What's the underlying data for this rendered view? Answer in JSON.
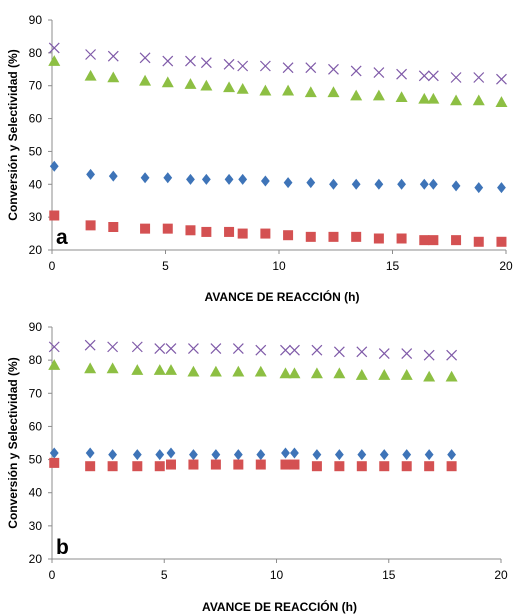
{
  "chart_data": [
    {
      "type": "scatter",
      "panel_label": "a",
      "xlabel": "AVANCE DE REACCIÓN (h)",
      "ylabel": "Conversión y Selectividad (%)",
      "xlim": [
        0,
        20
      ],
      "ylim": [
        20,
        90
      ],
      "xticks": [
        0,
        5,
        10,
        15,
        20
      ],
      "yticks": [
        20,
        30,
        40,
        50,
        60,
        70,
        80,
        90
      ],
      "grid": false,
      "series": [
        {
          "marker": "cross",
          "color": "#7f5aa8",
          "x": [
            0.1,
            1.7,
            2.7,
            4.1,
            5.1,
            6.1,
            6.8,
            7.8,
            8.4,
            9.4,
            10.4,
            11.4,
            12.4,
            13.4,
            14.4,
            15.4,
            16.4,
            16.8,
            17.8,
            18.8,
            19.8
          ],
          "y": [
            81.5,
            79.5,
            79,
            78.5,
            77.5,
            77.5,
            77,
            76.5,
            76,
            76,
            75.5,
            75.5,
            75,
            74.5,
            74,
            73.5,
            73,
            73,
            72.5,
            72.5,
            72
          ]
        },
        {
          "marker": "triangle",
          "color": "#8dbf43",
          "x": [
            0.1,
            1.7,
            2.7,
            4.1,
            5.1,
            6.1,
            6.8,
            7.8,
            8.4,
            9.4,
            10.4,
            11.4,
            12.4,
            13.4,
            14.4,
            15.4,
            16.4,
            16.8,
            17.8,
            18.8,
            19.8
          ],
          "y": [
            77.5,
            73,
            72.5,
            71.5,
            71,
            70.5,
            70,
            69.5,
            69,
            68.5,
            68.5,
            68,
            68,
            67,
            67,
            66.5,
            66,
            66,
            65.5,
            65.5,
            65
          ]
        },
        {
          "marker": "diamond",
          "color": "#3e74b8",
          "x": [
            0.1,
            1.7,
            2.7,
            4.1,
            5.1,
            6.1,
            6.8,
            7.8,
            8.4,
            9.4,
            10.4,
            11.4,
            12.4,
            13.4,
            14.4,
            15.4,
            16.4,
            16.8,
            17.8,
            18.8,
            19.8
          ],
          "y": [
            45.5,
            43,
            42.5,
            42,
            42,
            41.5,
            41.5,
            41.5,
            41.5,
            41,
            40.5,
            40.5,
            40,
            40,
            40,
            40,
            40,
            40,
            39.5,
            39,
            39
          ]
        },
        {
          "marker": "square",
          "color": "#d45152",
          "x": [
            0.1,
            1.7,
            2.7,
            4.1,
            5.1,
            6.1,
            6.8,
            7.8,
            8.4,
            9.4,
            10.4,
            11.4,
            12.4,
            13.4,
            14.4,
            15.4,
            16.4,
            16.8,
            17.8,
            18.8,
            19.8
          ],
          "y": [
            30.5,
            27.5,
            27,
            26.5,
            26.5,
            26,
            25.5,
            25.5,
            25,
            25,
            24.5,
            24,
            24,
            24,
            23.5,
            23.5,
            23,
            23,
            23,
            22.5,
            22.5
          ]
        }
      ]
    },
    {
      "type": "scatter",
      "panel_label": "b",
      "xlabel": "AVANCE DE REACCIÓN (h)",
      "ylabel": "Conversión y Selectividad (%)",
      "xlim": [
        0,
        20
      ],
      "ylim": [
        20,
        90
      ],
      "xticks": [
        0,
        5,
        10,
        15,
        20
      ],
      "yticks": [
        20,
        30,
        40,
        50,
        60,
        70,
        80,
        90
      ],
      "grid": false,
      "series": [
        {
          "marker": "cross",
          "color": "#7f5aa8",
          "x": [
            0.1,
            1.7,
            2.7,
            3.8,
            4.8,
            5.3,
            6.3,
            7.3,
            8.3,
            9.3,
            10.4,
            10.8,
            11.8,
            12.8,
            13.8,
            14.8,
            15.8,
            16.8,
            17.8
          ],
          "y": [
            84,
            84.5,
            84,
            84,
            83.5,
            83.5,
            83.5,
            83.5,
            83.5,
            83,
            83,
            83,
            83,
            82.5,
            82.5,
            82,
            82,
            81.5,
            81.5
          ]
        },
        {
          "marker": "triangle",
          "color": "#8dbf43",
          "x": [
            0.1,
            1.7,
            2.7,
            3.8,
            4.8,
            5.3,
            6.3,
            7.3,
            8.3,
            9.3,
            10.4,
            10.8,
            11.8,
            12.8,
            13.8,
            14.8,
            15.8,
            16.8,
            17.8
          ],
          "y": [
            78.5,
            77.5,
            77.5,
            77,
            77,
            77,
            76.5,
            76.5,
            76.5,
            76.5,
            76,
            76,
            76,
            76,
            75.5,
            75.5,
            75.5,
            75,
            75
          ]
        },
        {
          "marker": "diamond",
          "color": "#3e74b8",
          "x": [
            0.1,
            1.7,
            2.7,
            3.8,
            4.8,
            5.3,
            6.3,
            7.3,
            8.3,
            9.3,
            10.4,
            10.8,
            11.8,
            12.8,
            13.8,
            14.8,
            15.8,
            16.8,
            17.8
          ],
          "y": [
            52,
            52,
            51.5,
            51.5,
            51.5,
            52,
            51.5,
            51.5,
            51.5,
            51.5,
            52,
            52,
            51.5,
            51.5,
            51.5,
            51.5,
            51.5,
            51.5,
            51.5
          ]
        },
        {
          "marker": "square",
          "color": "#d45152",
          "x": [
            0.1,
            1.7,
            2.7,
            3.8,
            4.8,
            5.3,
            6.3,
            7.3,
            8.3,
            9.3,
            10.4,
            10.8,
            11.8,
            12.8,
            13.8,
            14.8,
            15.8,
            16.8,
            17.8
          ],
          "y": [
            49,
            48,
            48,
            48,
            48,
            48.5,
            48.5,
            48.5,
            48.5,
            48.5,
            48.5,
            48.5,
            48,
            48,
            48,
            48,
            48,
            48,
            48
          ]
        }
      ]
    }
  ]
}
